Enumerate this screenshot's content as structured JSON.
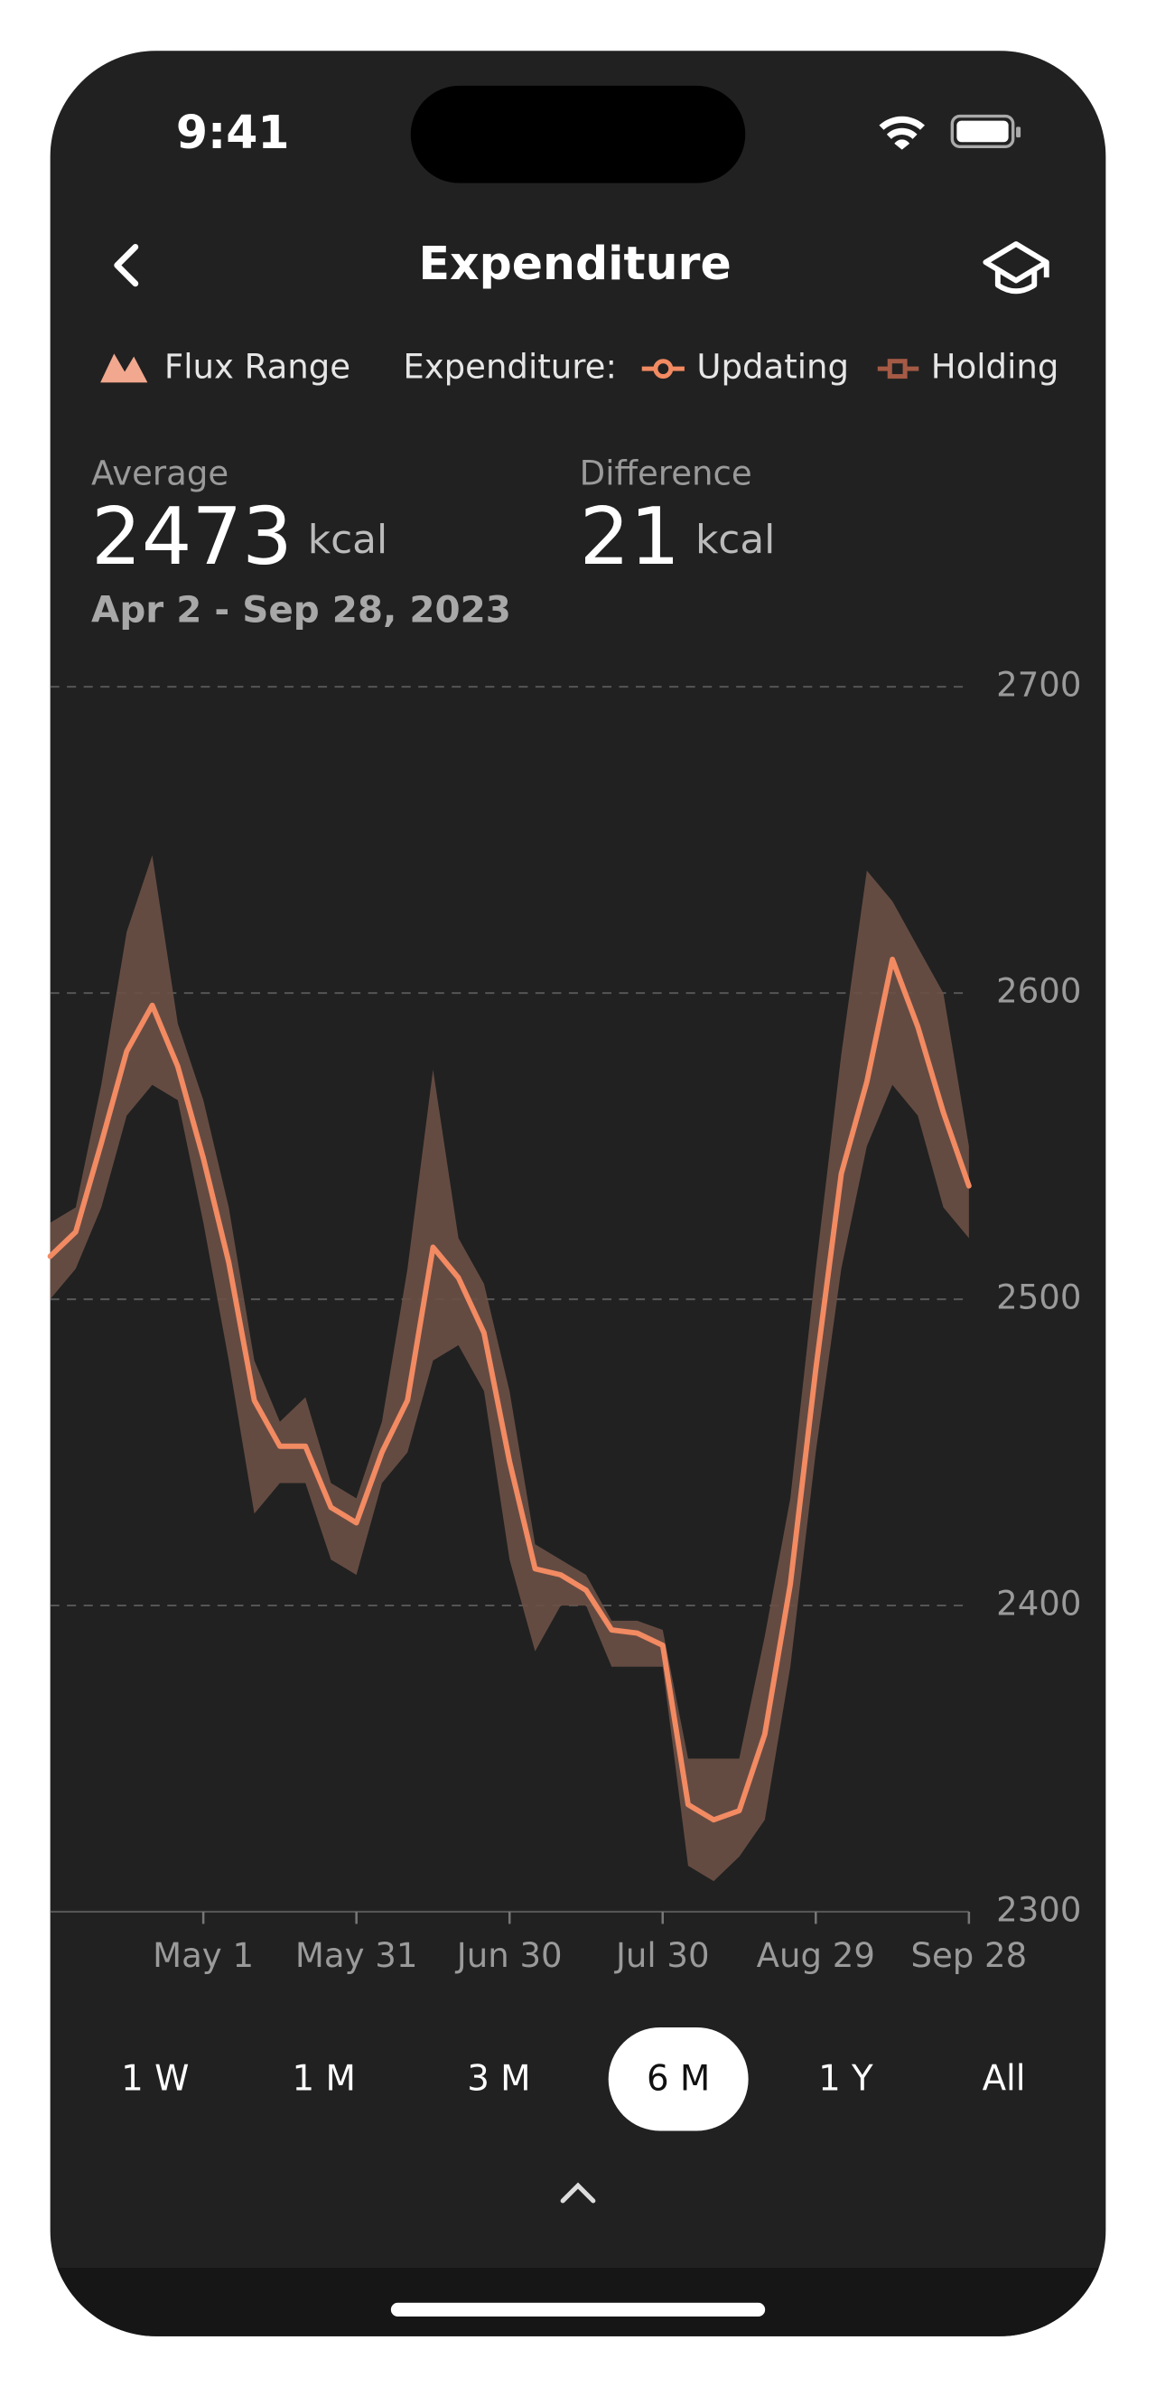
{
  "status": {
    "time": "9:41"
  },
  "header": {
    "title": "Expenditure"
  },
  "stats": [
    {
      "label": "Average",
      "value": 2473,
      "unit": "kcal"
    },
    {
      "label": "Difference",
      "value": 21,
      "unit": "kcal"
    }
  ],
  "range": "Apr 2 - Sep 28, 2023",
  "periods": [
    "1 W",
    "1 M",
    "3 M",
    "6 M",
    "1 Y",
    "All"
  ],
  "selected": 3,
  "chart_data": {
    "type": "line",
    "legend_label": "Expenditure:",
    "holding": {
      "name": "Holding",
      "color": "#a45a45"
    },
    "x": [
      null,
      null,
      null,
      null,
      null,
      null,
      "May 1",
      null,
      null,
      null,
      null,
      null,
      "May 31",
      null,
      null,
      null,
      null,
      null,
      "Jun 30",
      null,
      null,
      null,
      null,
      null,
      "Jul 30",
      null,
      null,
      null,
      null,
      null,
      "Aug 29",
      null,
      null,
      null,
      null,
      null,
      "Sep 28"
    ],
    "band": {
      "name": "Flux Range",
      "color": "#6b5046",
      "icon_color": "#f2a88e",
      "high": [
        2525,
        2530,
        2570,
        2620,
        2645,
        2590,
        2565,
        2530,
        2480,
        2460,
        2468,
        2440,
        2435,
        2460,
        2510,
        2575,
        2520,
        2505,
        2470,
        2420,
        2415,
        2410,
        2395,
        2395,
        2392,
        2350,
        2350,
        2350,
        2390,
        2435,
        2510,
        2580,
        2640,
        2630,
        2615,
        2600,
        2550
      ],
      "low": [
        2500,
        2510,
        2530,
        2560,
        2570,
        2565,
        2525,
        2480,
        2430,
        2440,
        2440,
        2415,
        2410,
        2440,
        2450,
        2480,
        2485,
        2470,
        2415,
        2385,
        2400,
        2400,
        2380,
        2380,
        2380,
        2315,
        2310,
        2318,
        2330,
        2380,
        2450,
        2510,
        2550,
        2570,
        2560,
        2530,
        2520
      ]
    },
    "series": [
      {
        "name": "Updating",
        "color": "#f28a62",
        "values": [
          2514,
          2522,
          2551,
          2581,
          2596,
          2576,
          2546,
          2512,
          2467,
          2452,
          2452,
          2432,
          2427,
          2450,
          2467,
          2517,
          2507,
          2489,
          2447,
          2412,
          2410,
          2405,
          2392,
          2391,
          2387,
          2335,
          2330,
          2333,
          2358,
          2407,
          2477,
          2541,
          2571,
          2611,
          2589,
          2561,
          2537
        ]
      }
    ],
    "ylim": [
      2300,
      2700
    ],
    "yticks": [
      2300,
      2400,
      2500,
      2600,
      2700
    ],
    "grid": true
  }
}
